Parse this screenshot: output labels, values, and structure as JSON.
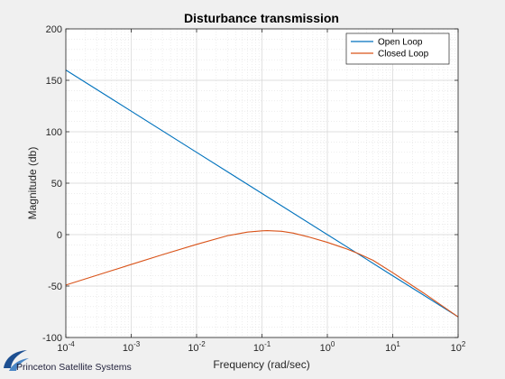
{
  "watermark": {
    "text": "Princeton Satellite Systems"
  },
  "chart_data": {
    "type": "line",
    "title": "Disturbance transmission",
    "xlabel": "Frequency (rad/sec)",
    "ylabel": "Magnitude (db)",
    "xscale": "log",
    "xlim": [
      0.0001,
      100
    ],
    "ylim": [
      -100,
      200
    ],
    "xticks": [
      {
        "value": 0.0001,
        "base": "10",
        "exp": "-4"
      },
      {
        "value": 0.001,
        "base": "10",
        "exp": "-3"
      },
      {
        "value": 0.01,
        "base": "10",
        "exp": "-2"
      },
      {
        "value": 0.1,
        "base": "10",
        "exp": "-1"
      },
      {
        "value": 1,
        "base": "10",
        "exp": "0"
      },
      {
        "value": 10,
        "base": "10",
        "exp": "1"
      },
      {
        "value": 100,
        "base": "10",
        "exp": "2"
      }
    ],
    "yticks": [
      {
        "value": 200,
        "label": "200"
      },
      {
        "value": 150,
        "label": "150"
      },
      {
        "value": 100,
        "label": "100"
      },
      {
        "value": 50,
        "label": "50"
      },
      {
        "value": 0,
        "label": "0"
      },
      {
        "value": -50,
        "label": "-50"
      },
      {
        "value": -100,
        "label": "-100"
      }
    ],
    "grid": "major-and-minor",
    "legend_position": "top-right",
    "series": [
      {
        "name": "Open Loop",
        "color": "#0072bd",
        "x": [
          0.0001,
          0.001,
          0.01,
          0.1,
          1,
          3,
          10,
          30,
          100
        ],
        "y": [
          160,
          120,
          80,
          40,
          0,
          -19,
          -40,
          -59,
          -80
        ]
      },
      {
        "name": "Closed Loop",
        "color": "#d95319",
        "x": [
          0.0001,
          0.0003,
          0.001,
          0.003,
          0.01,
          0.03,
          0.06,
          0.1,
          0.12,
          0.2,
          0.3,
          0.5,
          1,
          2,
          3,
          5,
          10,
          30,
          100
        ],
        "y": [
          -49,
          -39.5,
          -29,
          -19.5,
          -9.5,
          -1,
          2.5,
          3.7,
          3.9,
          3.2,
          1.5,
          -2,
          -7.5,
          -14,
          -18.5,
          -25,
          -37,
          -57,
          -80
        ]
      }
    ]
  }
}
